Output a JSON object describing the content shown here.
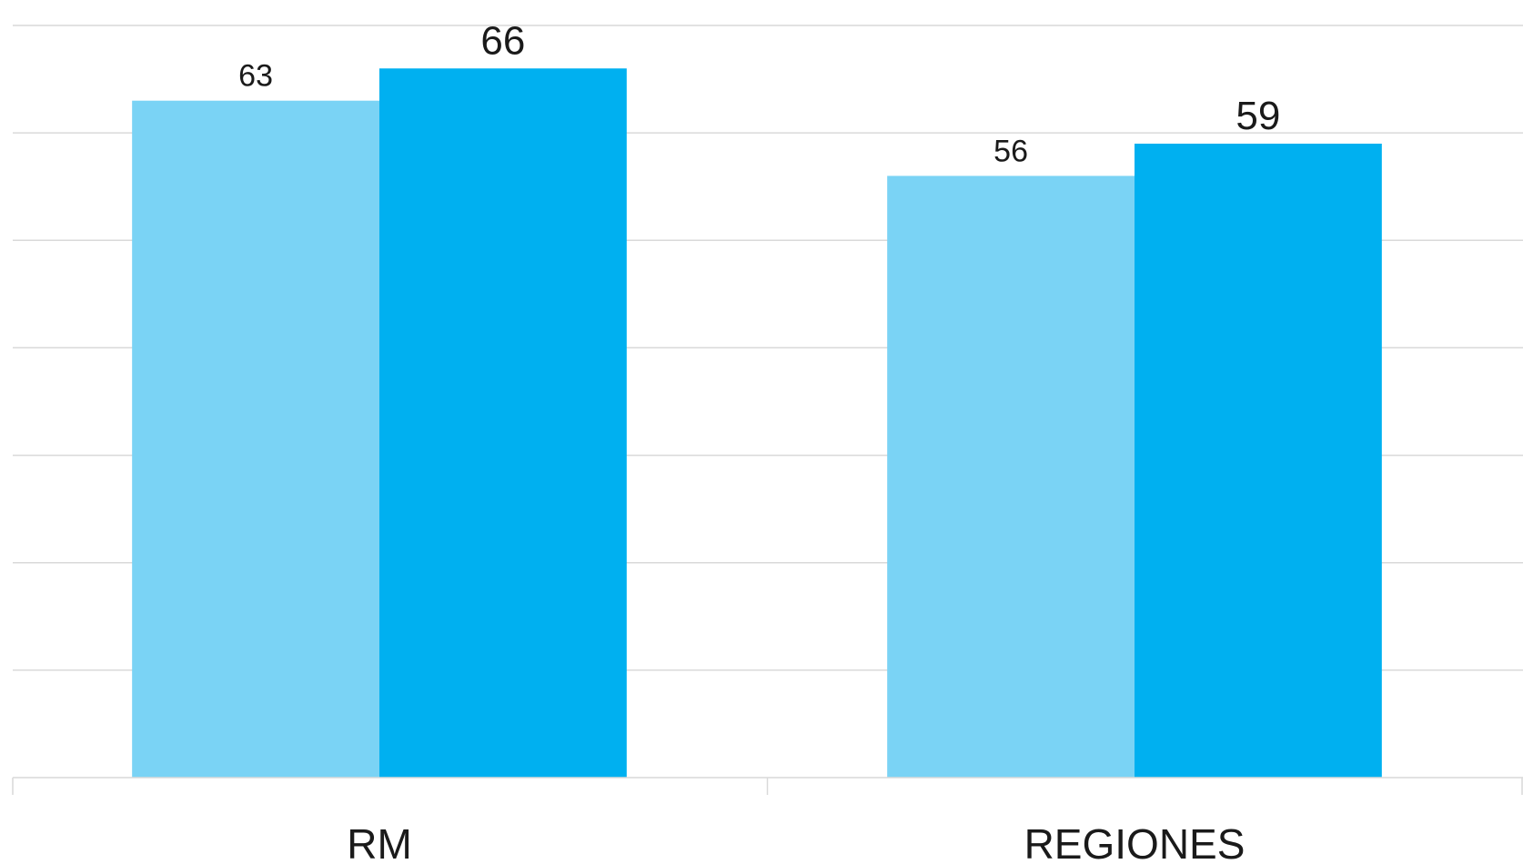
{
  "chart_data": {
    "type": "bar",
    "title": "",
    "xlabel": "",
    "ylabel": "",
    "categories": [
      "RM",
      "REGIONES"
    ],
    "series": [
      {
        "color": "#7ad3f5",
        "values": [
          63,
          56
        ],
        "value_labels": [
          "63",
          "56"
        ]
      },
      {
        "color": "#00b0f0",
        "values": [
          66,
          59
        ],
        "value_labels": [
          "66",
          "59"
        ]
      }
    ],
    "ylim": [
      0,
      70
    ],
    "gridlines": true,
    "y_tick_labels_visible": false,
    "legend": "none"
  }
}
